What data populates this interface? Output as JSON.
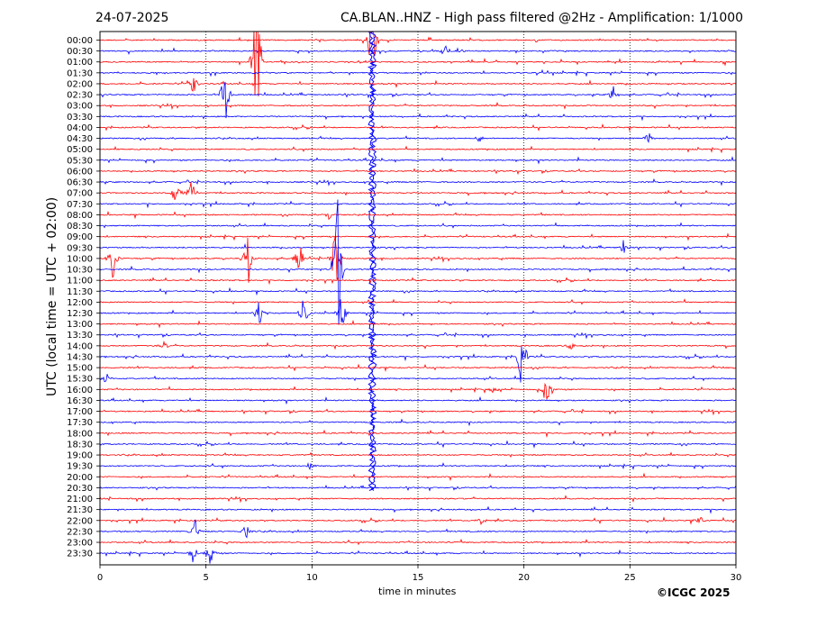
{
  "header": {
    "date": "24-07-2025",
    "title": "CA.BLAN..HNZ - High pass filtered @2Hz - Amplification: 1/1000"
  },
  "footer": {
    "copyright": "©ICGC 2025"
  },
  "chart_data": {
    "type": "line",
    "subtype": "helicorder",
    "xlabel": "time in minutes",
    "ylabel": "UTC (local time = UTC + 02:00)",
    "xlim": [
      0,
      30
    ],
    "xticks": [
      0,
      5,
      10,
      15,
      20,
      25,
      30
    ],
    "grid": "vertical dotted lines at each x tick",
    "trace_colors": [
      "#ff0000",
      "#0000ff"
    ],
    "rows": [
      "00:00",
      "00:30",
      "01:00",
      "01:30",
      "02:00",
      "02:30",
      "03:00",
      "03:30",
      "04:00",
      "04:30",
      "05:00",
      "05:30",
      "06:00",
      "06:30",
      "07:00",
      "07:30",
      "08:00",
      "08:30",
      "09:00",
      "09:30",
      "10:00",
      "10:30",
      "11:00",
      "11:30",
      "12:00",
      "12:30",
      "13:00",
      "13:30",
      "14:00",
      "14:30",
      "15:00",
      "15:30",
      "16:00",
      "16:30",
      "17:00",
      "17:30",
      "18:00",
      "18:30",
      "19:00",
      "19:30",
      "20:00",
      "20:30",
      "21:00",
      "21:30",
      "22:00",
      "22:30",
      "23:00",
      "23:30"
    ],
    "events": [
      {
        "row": "00:00",
        "minute": 12.8,
        "amplitude": 30,
        "extent_rows": 48
      },
      {
        "row": "00:00",
        "minute": 12.9,
        "amplitude": 28,
        "extent_rows": 48
      },
      {
        "row": "00:30",
        "minute": 16.3,
        "amplitude": 0.8
      },
      {
        "row": "00:30",
        "minute": 16.9,
        "amplitude": 0.5
      },
      {
        "row": "01:00",
        "minute": 7.4,
        "amplitude": 10
      },
      {
        "row": "02:00",
        "minute": 4.4,
        "amplitude": 1.2
      },
      {
        "row": "02:30",
        "minute": 5.9,
        "amplitude": 3.5
      },
      {
        "row": "02:30",
        "minute": 24.2,
        "amplitude": 1
      },
      {
        "row": "04:30",
        "minute": 25.9,
        "amplitude": 0.8
      },
      {
        "row": "04:30",
        "minute": 17.9,
        "amplitude": 0.5
      },
      {
        "row": "07:00",
        "minute": 3.6,
        "amplitude": 1.6
      },
      {
        "row": "07:00",
        "minute": 4.3,
        "amplitude": 1.8
      },
      {
        "row": "08:00",
        "minute": 10.8,
        "amplitude": 0.6
      },
      {
        "row": "09:30",
        "minute": 24.7,
        "amplitude": 0.8
      },
      {
        "row": "10:00",
        "minute": 0.6,
        "amplitude": 2.5
      },
      {
        "row": "10:00",
        "minute": 7.0,
        "amplitude": 3
      },
      {
        "row": "10:00",
        "minute": 9.4,
        "amplitude": 2
      },
      {
        "row": "10:00",
        "minute": 11.1,
        "amplitude": 4
      },
      {
        "row": "10:30",
        "minute": 11.2,
        "amplitude": 10
      },
      {
        "row": "12:30",
        "minute": 7.5,
        "amplitude": 1.5
      },
      {
        "row": "12:30",
        "minute": 9.6,
        "amplitude": 2.5
      },
      {
        "row": "12:30",
        "minute": 11.4,
        "amplitude": 2
      },
      {
        "row": "14:00",
        "minute": 3.0,
        "amplitude": 0.6
      },
      {
        "row": "14:00",
        "minute": 22.2,
        "amplitude": 0.6
      },
      {
        "row": "14:30",
        "minute": 19.9,
        "amplitude": 4
      },
      {
        "row": "15:30",
        "minute": 0.3,
        "amplitude": 0.8
      },
      {
        "row": "16:00",
        "minute": 21.1,
        "amplitude": 3
      },
      {
        "row": "16:00",
        "minute": 18.5,
        "amplitude": 0.5
      },
      {
        "row": "19:30",
        "minute": 9.9,
        "amplitude": 0.6
      },
      {
        "row": "22:00",
        "minute": 18.0,
        "amplitude": 0.6
      },
      {
        "row": "22:00",
        "minute": 28.3,
        "amplitude": 0.6
      },
      {
        "row": "22:30",
        "minute": 4.5,
        "amplitude": 1.2
      },
      {
        "row": "22:30",
        "minute": 6.9,
        "amplitude": 0.9
      },
      {
        "row": "23:30",
        "minute": 4.4,
        "amplitude": 1
      },
      {
        "row": "23:30",
        "minute": 5.2,
        "amplitude": 1.2
      }
    ]
  }
}
